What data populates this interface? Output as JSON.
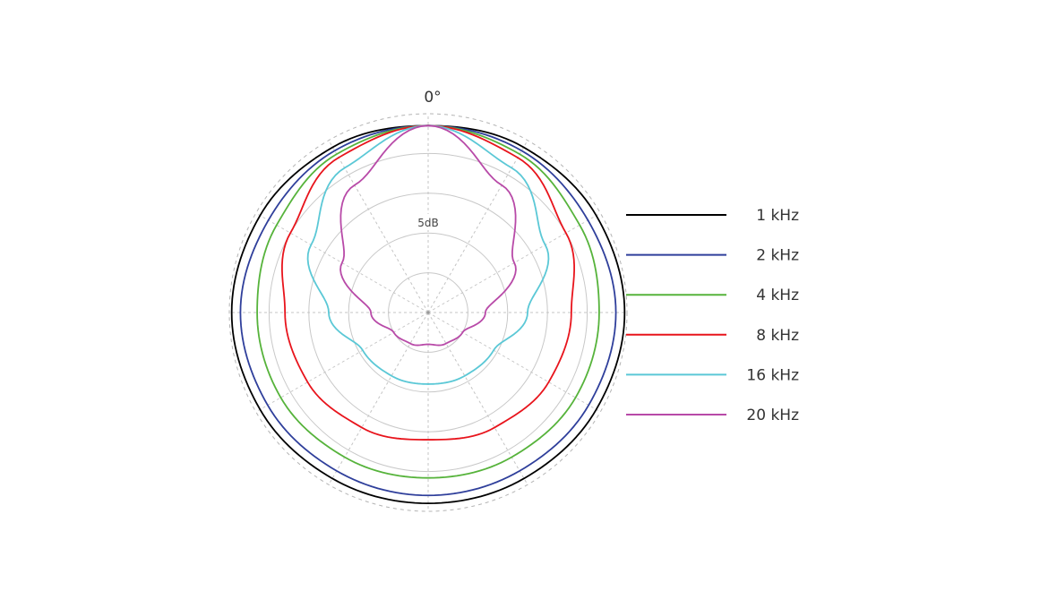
{
  "chart_data": {
    "type": "polar-line",
    "angle_label": "0°",
    "ring_label": "5dB",
    "rmax": 25,
    "ring_step": 5,
    "legend_position": "right",
    "series": [
      {
        "name": "1 kHz",
        "color": "#000000",
        "angles": [
          0,
          30,
          60,
          90,
          120,
          150,
          180
        ],
        "values": [
          -1.5,
          -1.0,
          -0.6,
          -0.3,
          -0.6,
          -0.9,
          -1.0
        ]
      },
      {
        "name": "2 kHz",
        "color": "#2f3f9b",
        "angles": [
          0,
          30,
          60,
          90,
          120,
          150,
          180
        ],
        "values": [
          -1.5,
          -1.5,
          -1.8,
          -1.4,
          -1.7,
          -2.0,
          -2.0
        ]
      },
      {
        "name": "4 kHz",
        "color": "#56b33b",
        "angles": [
          0,
          30,
          60,
          90,
          120,
          150,
          180
        ],
        "values": [
          -1.5,
          -2.0,
          -3.0,
          -3.5,
          -3.6,
          -4.0,
          -4.2
        ]
      },
      {
        "name": "8 kHz",
        "color": "#e8141c",
        "angles": [
          0,
          30,
          60,
          90,
          120,
          150,
          180
        ],
        "values": [
          -1.5,
          -2.5,
          -5.0,
          -7.0,
          -7.5,
          -8.3,
          -9.0
        ]
      },
      {
        "name": "16 kHz",
        "color": "#5bc8d6",
        "angles": [
          0,
          30,
          60,
          90,
          120,
          150,
          180
        ],
        "values": [
          -1.5,
          -4.0,
          -8.0,
          -12.5,
          -15.5,
          -15.8,
          -16.0
        ]
      },
      {
        "name": "20 kHz",
        "color": "#b84aa8",
        "angles": [
          0,
          30,
          60,
          90,
          120,
          150,
          180
        ],
        "values": [
          -1.5,
          -6.5,
          -12.5,
          -17.8,
          -20.0,
          -20.5,
          -21.0
        ]
      }
    ]
  }
}
